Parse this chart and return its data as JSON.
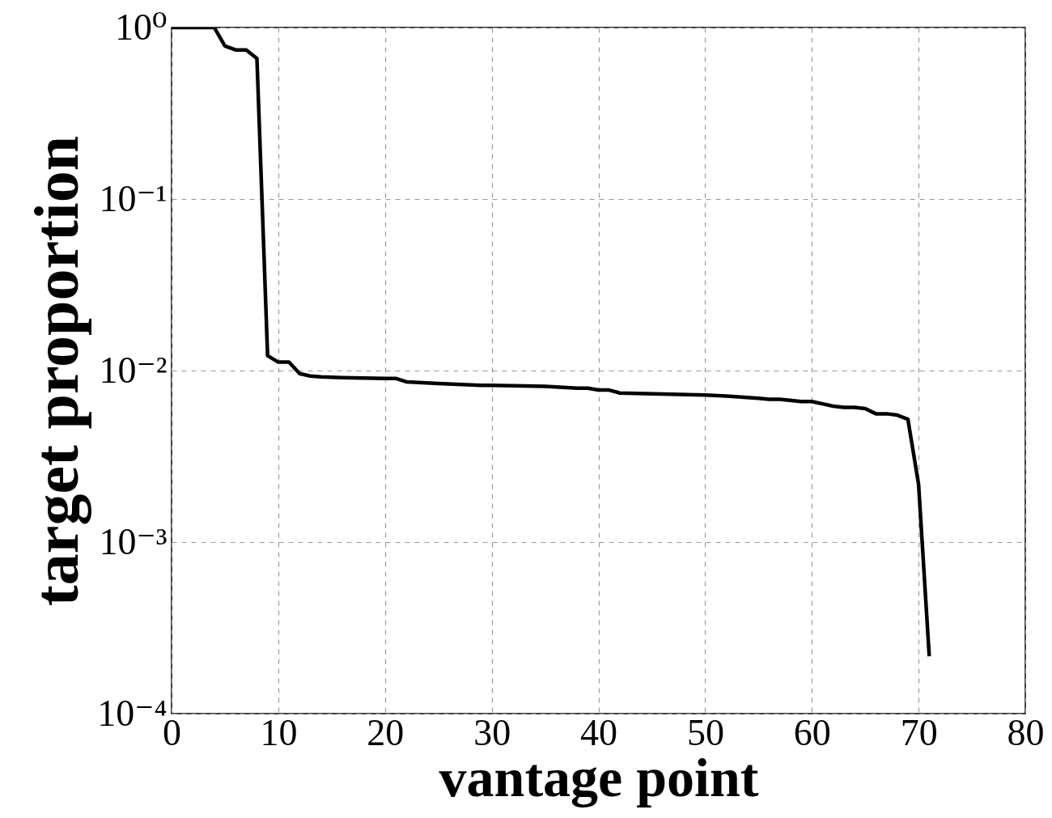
{
  "chart_data": {
    "type": "line",
    "xlabel": "vantage point",
    "ylabel": "target proportion",
    "x": [
      0,
      1,
      2,
      3,
      4,
      5,
      6,
      7,
      8,
      9,
      10,
      11,
      12,
      13,
      14,
      16,
      20,
      21,
      22,
      25,
      29,
      30,
      35,
      38,
      39,
      40,
      41,
      42,
      50,
      52,
      55,
      56,
      57,
      59,
      60,
      62,
      63,
      64,
      65,
      66,
      67,
      68,
      69,
      70,
      71
    ],
    "series": [
      {
        "color": "#000000",
        "values": [
          1,
          1,
          1,
          1,
          1,
          0.78,
          0.74,
          0.74,
          0.66,
          0.0122,
          0.0112,
          0.0112,
          0.0096,
          0.0093,
          0.0092,
          0.0091,
          0.009,
          0.009,
          0.0086,
          0.0084,
          0.0082,
          0.0082,
          0.0081,
          0.0079,
          0.0079,
          0.0077,
          0.0077,
          0.0074,
          0.0072,
          0.0071,
          0.0069,
          0.0068,
          0.0068,
          0.0066,
          0.0066,
          0.0062,
          0.0061,
          0.0061,
          0.006,
          0.0056,
          0.0056,
          0.0055,
          0.0052,
          0.00217,
          0.000216
        ]
      }
    ],
    "xlim": [
      0,
      80
    ],
    "xticks": [
      0,
      10,
      20,
      30,
      40,
      50,
      60,
      70,
      80
    ],
    "ylim": [
      0.0001,
      1
    ],
    "yticks": [
      {
        "value": 0.0001,
        "label": "10⁻⁴"
      },
      {
        "value": 0.001,
        "label": "10⁻³"
      },
      {
        "value": 0.01,
        "label": "10⁻²"
      },
      {
        "value": 0.1,
        "label": "10⁻¹"
      },
      {
        "value": 1,
        "label": "10⁰"
      }
    ],
    "log": true,
    "grid": true,
    "line_style": "solid",
    "marker": "none"
  }
}
